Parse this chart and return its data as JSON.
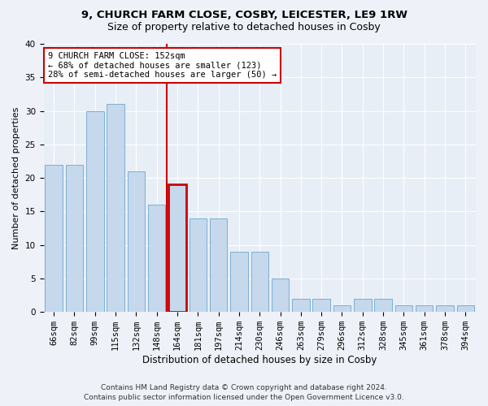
{
  "title": "9, CHURCH FARM CLOSE, COSBY, LEICESTER, LE9 1RW",
  "subtitle": "Size of property relative to detached houses in Cosby",
  "xlabel": "Distribution of detached houses by size in Cosby",
  "ylabel": "Number of detached properties",
  "categories": [
    "66sqm",
    "82sqm",
    "99sqm",
    "115sqm",
    "132sqm",
    "148sqm",
    "164sqm",
    "181sqm",
    "197sqm",
    "214sqm",
    "230sqm",
    "246sqm",
    "263sqm",
    "279sqm",
    "296sqm",
    "312sqm",
    "328sqm",
    "345sqm",
    "361sqm",
    "378sqm",
    "394sqm"
  ],
  "values": [
    22,
    22,
    30,
    31,
    21,
    16,
    19,
    14,
    14,
    9,
    9,
    5,
    2,
    2,
    1,
    2,
    2,
    1,
    1,
    1,
    1
  ],
  "bar_color": "#c5d8ec",
  "bar_edge_color": "#7aafd4",
  "highlight_bar_index": 6,
  "highlight_bar_edge_color": "#cc0000",
  "vline_color": "#cc0000",
  "annotation_text": "9 CHURCH FARM CLOSE: 152sqm\n← 68% of detached houses are smaller (123)\n28% of semi-detached houses are larger (50) →",
  "annotation_box_color": "#ffffff",
  "annotation_box_edge_color": "#cc0000",
  "ylim": [
    0,
    40
  ],
  "yticks": [
    0,
    5,
    10,
    15,
    20,
    25,
    30,
    35,
    40
  ],
  "footer1": "Contains HM Land Registry data © Crown copyright and database right 2024.",
  "footer2": "Contains public sector information licensed under the Open Government Licence v3.0.",
  "bg_color": "#eef2f8",
  "plot_bg_color": "#e8eef6",
  "grid_color": "#ffffff",
  "title_fontsize": 9.5,
  "subtitle_fontsize": 9,
  "xlabel_fontsize": 8.5,
  "ylabel_fontsize": 8,
  "tick_fontsize": 7.5,
  "annotation_fontsize": 7.5,
  "footer_fontsize": 6.5
}
